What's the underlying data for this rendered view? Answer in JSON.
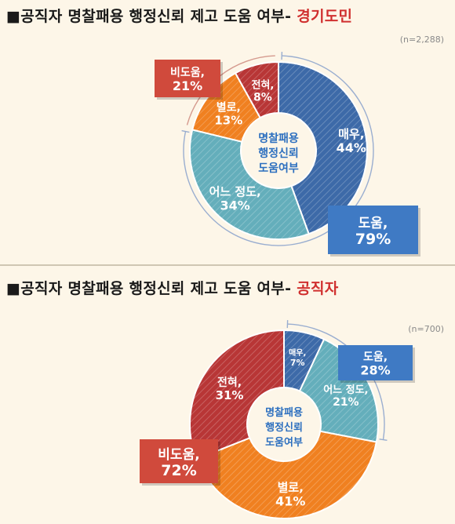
{
  "charts": [
    {
      "title_prefix": "■공직자 명찰패용 행정신뢰 제고 도움 여부-",
      "title_highlight": "경기도민",
      "n_label": "(n=2,288)",
      "center_label": [
        "명찰패용",
        "행정신뢰",
        "도움여부"
      ],
      "summary_help": {
        "label": "도움,",
        "value": "79%"
      },
      "summary_nohelp": {
        "label": "비도움,",
        "value": "21%"
      }
    },
    {
      "title_prefix": "■공직자 명찰패용 행정신뢰 제고 도움 여부-",
      "title_highlight": "공직자",
      "n_label": "(n=700)",
      "center_label": [
        "명찰패용",
        "행정신뢰",
        "도움여부"
      ],
      "summary_help": {
        "label": "도움,",
        "value": "28%"
      },
      "summary_nohelp": {
        "label": "비도움,",
        "value": "72%"
      }
    }
  ],
  "colors": {
    "very": "#3d6aa8",
    "somewhat": "#64aebb",
    "not_much": "#f08020",
    "not_at_all": "#b83636",
    "help_box": "#3f7ac4",
    "nohelp_box": "#d04a3c",
    "highlight": "#d0302f"
  },
  "chart_data": [
    {
      "type": "pie",
      "categories": [
        "매우,",
        "어느 정도,",
        "별로,",
        "전혀,"
      ],
      "values": [
        44,
        34,
        13,
        8
      ],
      "labels": [
        "44%",
        "34%",
        "13%",
        "8%"
      ]
    },
    {
      "type": "pie",
      "categories": [
        "매우,",
        "어느 정도,",
        "별로,",
        "전혀,"
      ],
      "values": [
        7,
        21,
        41,
        31
      ],
      "labels": [
        "7%",
        "21%",
        "41%",
        "31%"
      ]
    }
  ]
}
